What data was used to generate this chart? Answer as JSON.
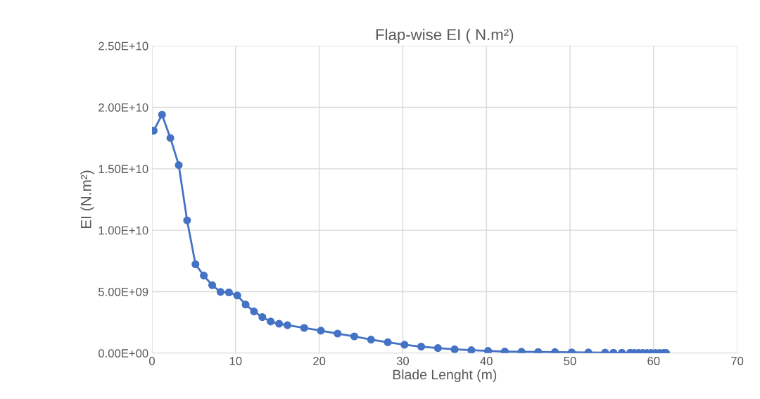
{
  "chart_data": {
    "type": "line",
    "title": "Flap-wise EI ( N.m²)",
    "xlabel": "Blade Lenght (m)",
    "ylabel": "EI (N.m²)",
    "x": [
      0,
      0.2,
      1.2,
      2.2,
      3.2,
      4.2,
      5.2,
      6.2,
      7.2,
      8.2,
      9.2,
      10.2,
      11.2,
      12.2,
      13.2,
      14.2,
      15.2,
      16.2,
      18.2,
      20.2,
      22.2,
      24.2,
      26.2,
      28.2,
      30.2,
      32.2,
      34.2,
      36.2,
      38.2,
      40.2,
      42.2,
      44.2,
      46.2,
      48.2,
      50.2,
      52.2,
      54.2,
      55.2,
      56.2,
      57.2,
      57.7,
      58.2,
      58.7,
      59.2,
      59.7,
      60.2,
      60.7,
      61.2,
      61.5
    ],
    "series": [
      {
        "color": "#4472c4",
        "values": [
          18100000000.0,
          18100000000.0,
          19400000000.0,
          17500000000.0,
          15300000000.0,
          10800000000.0,
          7230000000.0,
          6310000000.0,
          5530000000.0,
          4980000000.0,
          4940000000.0,
          4690000000.0,
          3950000000.0,
          3390000000.0,
          2930000000.0,
          2570000000.0,
          2390000000.0,
          2270000000.0,
          2050000000.0,
          1830000000.0,
          1590000000.0,
          1360000000.0,
          1100000000.0,
          880000000.0,
          680000000.0,
          530000000.0,
          410000000.0,
          310000000.0,
          240000000.0,
          180000000.0,
          130000000.0,
          110000000.0,
          90000000.0,
          80000000.0,
          60000000.0,
          50000000.0,
          40000000.0,
          30000000.0,
          30000000.0,
          30000000.0,
          20000000.0,
          20000000.0,
          20000000.0,
          10000000.0,
          10000000.0,
          10000000.0,
          10000000.0,
          10000000.0,
          10000000.0
        ]
      }
    ],
    "xlim": [
      0,
      70
    ],
    "xticks": [
      0,
      10,
      20,
      30,
      40,
      50,
      60,
      70
    ],
    "ylim": [
      0,
      25000000000.0
    ],
    "yticks": [
      {
        "value": 0,
        "label": "0.00E+00"
      },
      {
        "value": 5000000000.0,
        "label": "5.00E+09"
      },
      {
        "value": 10000000000.0,
        "label": "1.00E+10"
      },
      {
        "value": 15000000000.0,
        "label": "1.50E+10"
      },
      {
        "value": 20000000000.0,
        "label": "2.00E+10"
      },
      {
        "value": 25000000000.0,
        "label": "2.50E+10"
      }
    ],
    "grid": true,
    "marker": "circle",
    "line_style": "solid",
    "legend": false
  }
}
